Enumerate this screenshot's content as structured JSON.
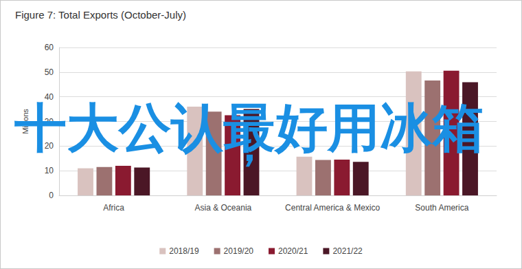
{
  "chart_data": {
    "type": "bar",
    "title": "Figure 7: Total Exports (October-July)",
    "y_label": "Millions",
    "categories": [
      "Africa",
      "Asia & Oceania",
      "Central America & Mexico",
      "South America"
    ],
    "series": [
      {
        "name": "2018/19",
        "color": "#d9c2bf",
        "values": [
          11,
          36,
          15.7,
          50.3
        ]
      },
      {
        "name": "2019/20",
        "color": "#9c7170",
        "values": [
          11.5,
          34,
          14.4,
          46.6
        ]
      },
      {
        "name": "2020/21",
        "color": "#8a1a30",
        "values": [
          12,
          32.5,
          14.5,
          50.6
        ]
      },
      {
        "name": "2021/22",
        "color": "#4b1726",
        "values": [
          11.3,
          35,
          13.6,
          45.9
        ]
      }
    ],
    "ylim": [
      0,
      60
    ],
    "yticks": [
      0,
      10,
      20,
      30,
      40,
      50,
      60
    ],
    "grid": true,
    "legend": "bottom",
    "annotations": [
      "十大公认最好用冰箱",
      "，"
    ]
  }
}
